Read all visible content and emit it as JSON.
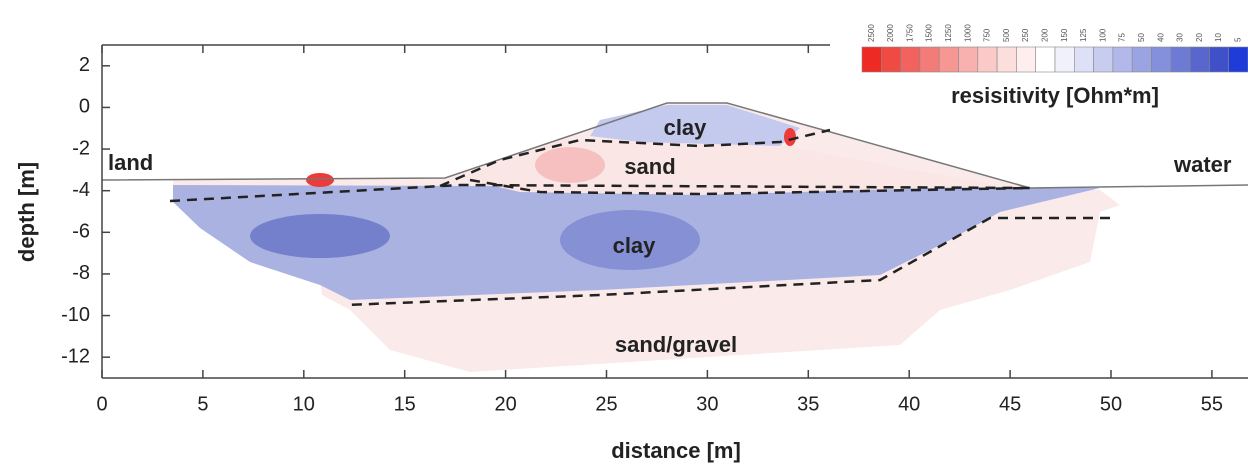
{
  "chart_data": {
    "type": "section",
    "xlabel": "distance [m]",
    "ylabel": "depth [m]",
    "xlim": [
      0,
      56.8
    ],
    "ylim": [
      -13,
      3
    ],
    "xticks": [
      0,
      5,
      10,
      15,
      20,
      25,
      30,
      35,
      40,
      45,
      50,
      55
    ],
    "yticks": [
      2,
      0,
      -2,
      -4,
      -6,
      -8,
      -10,
      -12
    ],
    "annotations": [
      "land",
      "water",
      "clay",
      "sand",
      "clay",
      "sand/gravel"
    ],
    "colorbar": {
      "label": "resisitivity [Ohm*m]",
      "ticks": [
        2500,
        2000,
        1750,
        1500,
        1250,
        1000,
        750,
        500,
        250,
        200,
        150,
        125,
        100,
        75,
        50,
        40,
        30,
        20,
        10,
        5
      ],
      "colors": [
        "#ee2a24",
        "#f04a44",
        "#f2625e",
        "#f47c78",
        "#f69794",
        "#f8b1af",
        "#facac8",
        "#fcdedd",
        "#feefee",
        "#ffffff",
        "#f0f1fb",
        "#dde0f6",
        "#c8cdf0",
        "#b2b9ea",
        "#9ba4e3",
        "#8590dc",
        "#6e7bd5",
        "#5866ce",
        "#3f50c8",
        "#1f3cd8"
      ]
    }
  }
}
